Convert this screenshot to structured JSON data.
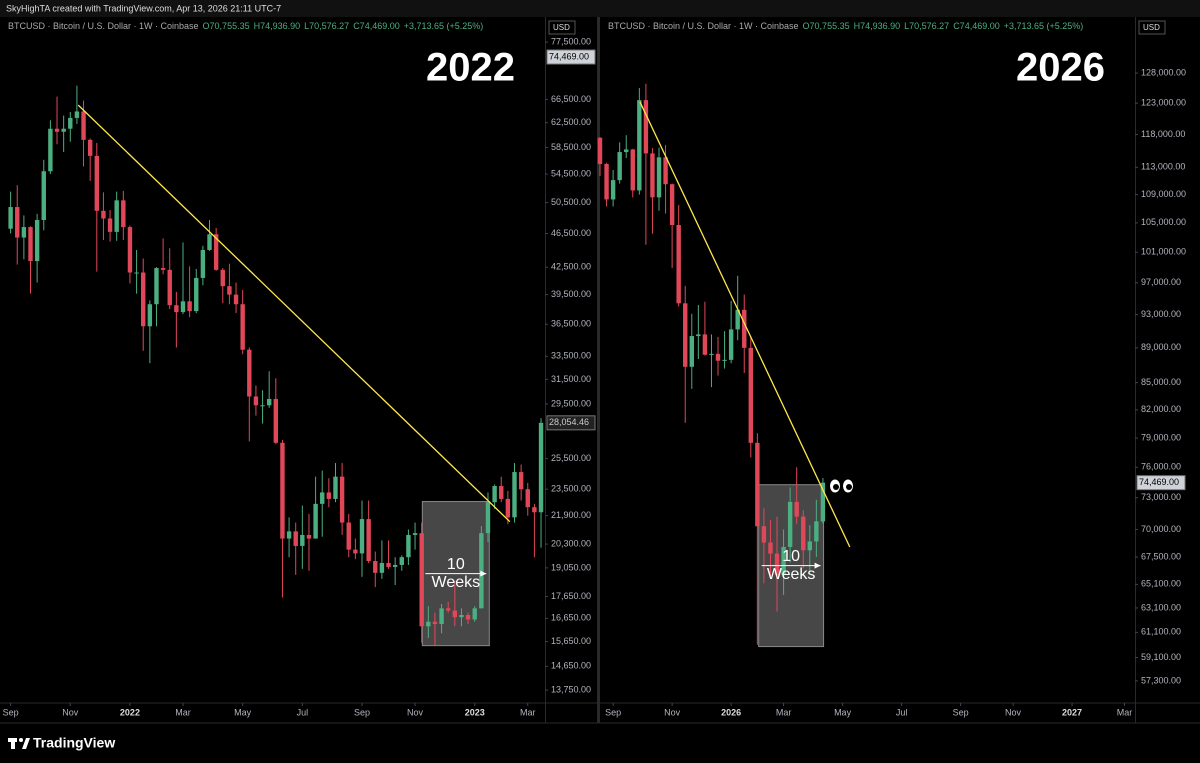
{
  "header": {
    "text": "SkyHighTA created with TradingView.com, Apr 13, 2026 21:11 UTC-7"
  },
  "footer": {
    "logo": "TradingView"
  },
  "chart_data": [
    {
      "type": "candlestick",
      "title": "2022",
      "symbol": "BTCUSD · Bitcoin / U.S. Dollar · 1W · Coinbase",
      "ohlc": [
        "O70,755.35",
        "H74,936.90",
        "L70,576.27",
        "C74,469.00"
      ],
      "change": "+3,713.65 (+5.25%)",
      "currency": "USD",
      "log_scale": true,
      "up_color": "#4caf82",
      "down_color": "#e0485a",
      "x": [
        0,
        1,
        2,
        3,
        4,
        5,
        6,
        7,
        8,
        9,
        10,
        11,
        12,
        13,
        14,
        15,
        16,
        17,
        18,
        19,
        20,
        21,
        22,
        23,
        24,
        25,
        26,
        27,
        28,
        29,
        30,
        31,
        32,
        33,
        34,
        35,
        36,
        37,
        38,
        39,
        40,
        41,
        42,
        43,
        44,
        45,
        46,
        47,
        48,
        49,
        50,
        51,
        52,
        53,
        54,
        55,
        56,
        57,
        58,
        59,
        60,
        61,
        62,
        63,
        64,
        65,
        66,
        67,
        68,
        69,
        70,
        71,
        72,
        73,
        74,
        75,
        76,
        77,
        78,
        79,
        80
      ],
      "open": [
        47100,
        49900,
        46000,
        47300,
        43200,
        48200,
        54900,
        61500,
        61000,
        61500,
        63300,
        64400,
        59700,
        57200,
        49400,
        48400,
        46700,
        50800,
        47300,
        41900,
        41900,
        36300,
        38500,
        42400,
        42200,
        38400,
        37700,
        38800,
        37800,
        41300,
        44500,
        46400,
        42200,
        40400,
        39500,
        38500,
        34100,
        30100,
        29400,
        29400,
        29900,
        26600,
        20600,
        21000,
        20200,
        20800,
        20600,
        22600,
        23300,
        22900,
        24300,
        21500,
        20000,
        19800,
        21700,
        19400,
        18800,
        19300,
        19100,
        19200,
        19600,
        20800,
        20900,
        16300,
        16500,
        16400,
        17100,
        17000,
        16700,
        16800,
        16600,
        17100,
        20900,
        22700,
        23700,
        22900,
        21800,
        24600,
        23500,
        22400,
        22100
      ],
      "high": [
        52000,
        52900,
        48800,
        47400,
        49000,
        56600,
        62900,
        67000,
        63700,
        64300,
        69000,
        66300,
        59900,
        59200,
        51900,
        49500,
        52000,
        52100,
        47500,
        44500,
        43500,
        38900,
        42500,
        45900,
        44700,
        39800,
        45400,
        42600,
        42300,
        45000,
        48200,
        47200,
        42400,
        42900,
        40800,
        40000,
        34300,
        31000,
        30600,
        32200,
        31600,
        26800,
        21800,
        21500,
        22500,
        22000,
        24300,
        24700,
        24200,
        25200,
        25200,
        22000,
        20600,
        22800,
        22800,
        19900,
        20500,
        20500,
        19600,
        19700,
        21100,
        21500,
        21500,
        17200,
        16900,
        17300,
        17400,
        18400,
        17100,
        16900,
        17200,
        21300,
        23300,
        23800,
        24300,
        23400,
        25200,
        25100,
        23900,
        22600,
        28400
      ],
      "low": [
        46500,
        42800,
        43400,
        39600,
        40800,
        46900,
        54500,
        59000,
        57800,
        59400,
        62300,
        55600,
        53500,
        42000,
        45700,
        45500,
        45600,
        45700,
        40700,
        39600,
        34000,
        32900,
        36300,
        41700,
        38000,
        34300,
        37500,
        37200,
        37600,
        40500,
        44400,
        42100,
        38600,
        38500,
        37600,
        33700,
        26700,
        28600,
        28000,
        29200,
        26500,
        17600,
        19600,
        18700,
        19000,
        18900,
        20600,
        20700,
        22400,
        22700,
        20800,
        19600,
        19500,
        18600,
        19300,
        18100,
        18500,
        19000,
        18200,
        18900,
        19200,
        20000,
        15600,
        15800,
        15500,
        16000,
        16900,
        16300,
        16300,
        16400,
        16500,
        17100,
        20400,
        22300,
        22700,
        21400,
        21500,
        22800,
        21900,
        19600,
        20100
      ],
      "close": [
        49900,
        46000,
        47300,
        43200,
        48200,
        54900,
        61500,
        61000,
        61500,
        63300,
        64400,
        59700,
        57200,
        49400,
        48400,
        46700,
        50800,
        47300,
        41900,
        41900,
        36300,
        38500,
        42400,
        42200,
        38400,
        37700,
        38800,
        37800,
        41300,
        44500,
        46400,
        42200,
        40400,
        39500,
        38500,
        34100,
        30100,
        29400,
        29400,
        29900,
        26600,
        20600,
        21000,
        20200,
        20800,
        20600,
        22600,
        23300,
        22900,
        24300,
        21500,
        20000,
        19800,
        21700,
        19400,
        18800,
        19300,
        19100,
        19200,
        19600,
        20800,
        20900,
        16300,
        16500,
        16400,
        17100,
        17000,
        16700,
        16800,
        16600,
        17100,
        20900,
        22700,
        23700,
        22900,
        21800,
        24600,
        23500,
        22400,
        22100,
        28054.46
      ],
      "xlim": [
        -1.6,
        80.6
      ],
      "ylim": [
        13390,
        82200
      ],
      "xticks": [
        {
          "value": 0,
          "label": "Sep"
        },
        {
          "value": 9,
          "label": "Nov"
        },
        {
          "value": 18,
          "label": "2022"
        },
        {
          "value": 26,
          "label": "Mar"
        },
        {
          "value": 35,
          "label": "May"
        },
        {
          "value": 44,
          "label": "Jul"
        },
        {
          "value": 53,
          "label": "Sep"
        },
        {
          "value": 61,
          "label": "Nov"
        },
        {
          "value": 70,
          "label": "2023"
        },
        {
          "value": 78,
          "label": "Mar"
        }
      ],
      "yticks": [
        {
          "value": 77500,
          "label": "77,500.00"
        },
        {
          "value": 66500,
          "label": "66,500.00"
        },
        {
          "value": 62500,
          "label": "62,500.00"
        },
        {
          "value": 58500,
          "label": "58,500.00"
        },
        {
          "value": 54500,
          "label": "54,500.00"
        },
        {
          "value": 50500,
          "label": "50,500.00"
        },
        {
          "value": 46500,
          "label": "46,500.00"
        },
        {
          "value": 42500,
          "label": "42,500.00"
        },
        {
          "value": 39500,
          "label": "39,500.00"
        },
        {
          "value": 36500,
          "label": "36,500.00"
        },
        {
          "value": 33500,
          "label": "33,500.00"
        },
        {
          "value": 31500,
          "label": "31,500.00"
        },
        {
          "value": 29500,
          "label": "29,500.00"
        },
        {
          "value": 25500,
          "label": "25,500.00"
        },
        {
          "value": 23500,
          "label": "23,500.00"
        },
        {
          "value": 21900,
          "label": "21,900.00"
        },
        {
          "value": 20300,
          "label": "20,300.00"
        },
        {
          "value": 19050,
          "label": "19,050.00"
        },
        {
          "value": 17650,
          "label": "17,650.00"
        },
        {
          "value": 16650,
          "label": "16,650.00"
        },
        {
          "value": 15650,
          "label": "15,650.00"
        },
        {
          "value": 14650,
          "label": "14,650.00"
        },
        {
          "value": 13750,
          "label": "13,750.00"
        }
      ],
      "price_tags": [
        {
          "value": 74469,
          "label": "74,469.00"
        },
        {
          "value": 28054.46,
          "label": "28,054.46"
        }
      ],
      "trendline": {
        "color": "#ffe84d",
        "x": [
          10.2,
          75.3
        ],
        "y": [
          65500,
          21550
        ]
      },
      "box": {
        "x": [
          62.1,
          72.2
        ],
        "y": [
          15480,
          22740
        ]
      },
      "annotation": [
        "10",
        "Weeks"
      ]
    },
    {
      "type": "candlestick",
      "title": "2026",
      "symbol": "BTCUSD · Bitcoin / U.S. Dollar · 1W · Coinbase",
      "ohlc": [
        "O70,755.35",
        "H74,936.90",
        "L70,576.27",
        "C74,469.00"
      ],
      "change": "+3,713.65 (+5.25%)",
      "currency": "USD",
      "log_scale": true,
      "up_color": "#4caf82",
      "down_color": "#e0485a",
      "x": [
        -2,
        -1,
        0,
        1,
        2,
        3,
        4,
        5,
        6,
        7,
        8,
        9,
        10,
        11,
        12,
        13,
        14,
        15,
        16,
        17,
        18,
        19,
        20,
        21,
        22,
        23,
        24,
        25,
        26,
        27,
        28,
        29,
        30,
        31,
        32
      ],
      "open": [
        117500,
        113500,
        108300,
        111100,
        115300,
        115700,
        109600,
        123500,
        115100,
        108600,
        114500,
        110500,
        104700,
        94400,
        86800,
        90400,
        90600,
        88200,
        88300,
        87500,
        87600,
        91200,
        93600,
        89000,
        78500,
        70300,
        68800,
        67800,
        65900,
        68400,
        72600,
        71200,
        68100,
        68900,
        70755.35
      ],
      "high": [
        117600,
        113700,
        112600,
        116800,
        117900,
        115800,
        125500,
        126200,
        115900,
        116000,
        116400,
        110600,
        107500,
        96600,
        93100,
        94200,
        94600,
        90600,
        90300,
        91000,
        94700,
        97900,
        95500,
        90400,
        79500,
        72000,
        70900,
        71200,
        70000,
        74000,
        76000,
        71800,
        70400,
        72800,
        74936.9
      ],
      "low": [
        111700,
        107300,
        107300,
        110600,
        114400,
        108600,
        109000,
        102000,
        103500,
        106700,
        106300,
        98900,
        94000,
        80600,
        84300,
        87700,
        88100,
        84500,
        85800,
        86600,
        87200,
        89900,
        86100,
        77000,
        60100,
        65200,
        65800,
        62800,
        64200,
        67000,
        70500,
        66500,
        66200,
        67500,
        70576.27
      ],
      "close": [
        113500,
        108300,
        111100,
        115300,
        115700,
        109600,
        123500,
        115100,
        108600,
        114500,
        110500,
        104700,
        94400,
        86800,
        90400,
        90600,
        88200,
        88300,
        87500,
        87600,
        91200,
        93600,
        89000,
        78500,
        70300,
        68800,
        67800,
        65900,
        68400,
        72600,
        71200,
        68100,
        68900,
        70755.35,
        74469
      ],
      "xlim": [
        -2.0,
        79.6
      ],
      "ylim": [
        55870,
        137300
      ],
      "xticks": [
        {
          "value": 0,
          "label": "Sep"
        },
        {
          "value": 9,
          "label": "Nov"
        },
        {
          "value": 18,
          "label": "2026"
        },
        {
          "value": 26,
          "label": "Mar"
        },
        {
          "value": 35,
          "label": "May"
        },
        {
          "value": 44,
          "label": "Jul"
        },
        {
          "value": 53,
          "label": "Sep"
        },
        {
          "value": 61,
          "label": "Nov"
        },
        {
          "value": 70,
          "label": "2027"
        },
        {
          "value": 78,
          "label": "Mar"
        }
      ],
      "yticks": [
        {
          "value": 128000,
          "label": "128,000.00"
        },
        {
          "value": 123000,
          "label": "123,000.00"
        },
        {
          "value": 118000,
          "label": "118,000.00"
        },
        {
          "value": 113000,
          "label": "113,000.00"
        },
        {
          "value": 109000,
          "label": "109,000.00"
        },
        {
          "value": 105000,
          "label": "105,000.00"
        },
        {
          "value": 101000,
          "label": "101,000.00"
        },
        {
          "value": 97000,
          "label": "97,000.00"
        },
        {
          "value": 93000,
          "label": "93,000.00"
        },
        {
          "value": 89000,
          "label": "89,000.00"
        },
        {
          "value": 85000,
          "label": "85,000.00"
        },
        {
          "value": 82000,
          "label": "82,000.00"
        },
        {
          "value": 79000,
          "label": "79,000.00"
        },
        {
          "value": 76000,
          "label": "76,000.00"
        },
        {
          "value": 73000,
          "label": "73,000.00"
        },
        {
          "value": 70000,
          "label": "70,000.00"
        },
        {
          "value": 67500,
          "label": "67,500.00"
        },
        {
          "value": 65100,
          "label": "65,100.00"
        },
        {
          "value": 63100,
          "label": "63,100.00"
        },
        {
          "value": 61100,
          "label": "61,100.00"
        },
        {
          "value": 59100,
          "label": "59,100.00"
        },
        {
          "value": 57300,
          "label": "57,300.00"
        }
      ],
      "price_tags": [
        {
          "value": 74469,
          "label": "74,469.00"
        }
      ],
      "trendline": {
        "color": "#ffe84d",
        "x": [
          4.1,
          36.1
        ],
        "y": [
          123200,
          68400
        ]
      },
      "box": {
        "x": [
          22.2,
          32.1
        ],
        "y": [
          59960,
          74270
        ]
      },
      "annotation": [
        "10",
        "Weeks"
      ]
    }
  ]
}
